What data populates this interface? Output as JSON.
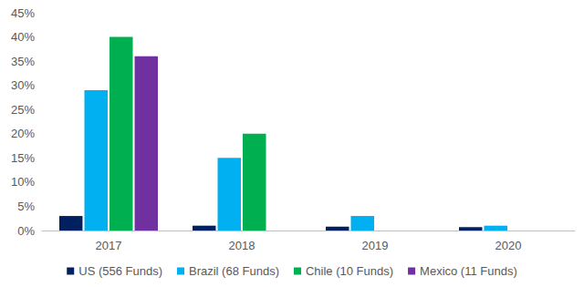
{
  "chart_data": {
    "type": "bar",
    "categories": [
      "2017",
      "2018",
      "2019",
      "2020"
    ],
    "series": [
      {
        "name": "US (556 Funds)",
        "color": "#002060",
        "values": [
          3,
          1,
          0.8,
          0.7
        ]
      },
      {
        "name": "Brazil (68 Funds)",
        "color": "#00B0F0",
        "values": [
          29,
          15,
          3,
          1
        ]
      },
      {
        "name": "Chile (10 Funds)",
        "color": "#00B050",
        "values": [
          40,
          20,
          null,
          null
        ]
      },
      {
        "name": "Mexico (11 Funds)",
        "color": "#7030A0",
        "values": [
          36,
          null,
          null,
          null
        ]
      }
    ],
    "ylim": [
      0,
      45
    ],
    "yticks": [
      {
        "value": 0,
        "label": "0%"
      },
      {
        "value": 5,
        "label": "5%"
      },
      {
        "value": 10,
        "label": "10%"
      },
      {
        "value": 15,
        "label": "15%"
      },
      {
        "value": 20,
        "label": "20%"
      },
      {
        "value": 25,
        "label": "25%"
      },
      {
        "value": 30,
        "label": "30%"
      },
      {
        "value": 35,
        "label": "35%"
      },
      {
        "value": 40,
        "label": "40%"
      },
      {
        "value": 45,
        "label": "45%"
      }
    ],
    "grid": false,
    "legend": "bottom"
  }
}
